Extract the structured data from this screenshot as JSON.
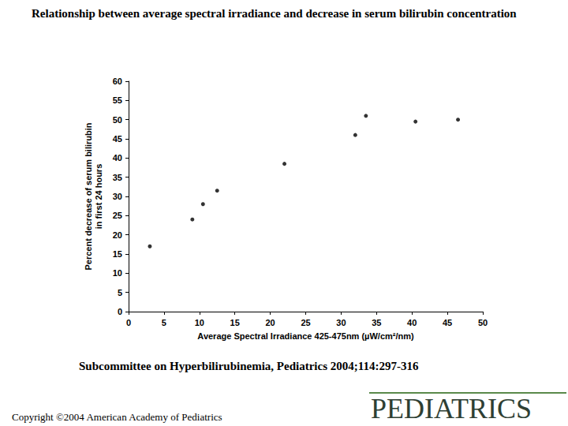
{
  "chart_data": {
    "type": "scatter",
    "title": "Relationship between average spectral irradiance and decrease in serum bilirubin concentration",
    "x": [
      3,
      9,
      10.5,
      12.5,
      22,
      32,
      33.5,
      40.5,
      46.5
    ],
    "values": [
      17,
      24,
      28,
      31.5,
      38.5,
      46,
      51,
      49.5,
      50
    ],
    "xlabel": "Average Spectral Irradiance 425-475nm (µW/cm²/nm)",
    "ylabel": "Percent decrease of serum bilirubin\nin first 24 hours",
    "xlim": [
      0,
      50
    ],
    "xticks": [
      0,
      5,
      10,
      15,
      20,
      25,
      30,
      35,
      40,
      45,
      50
    ],
    "ylim": [
      0,
      60
    ],
    "yticks": [
      0,
      5,
      10,
      15,
      20,
      25,
      30,
      35,
      40,
      45,
      50,
      55,
      60
    ],
    "grid": false,
    "color": "#000000",
    "marker": "circle",
    "source": "Subcommittee on Hyperbilirubinemia, Pediatrics 2004;114:297-316",
    "copyright": "Copyright ©2004 American Academy of Pediatrics",
    "logo": "PEDIATRICS"
  }
}
